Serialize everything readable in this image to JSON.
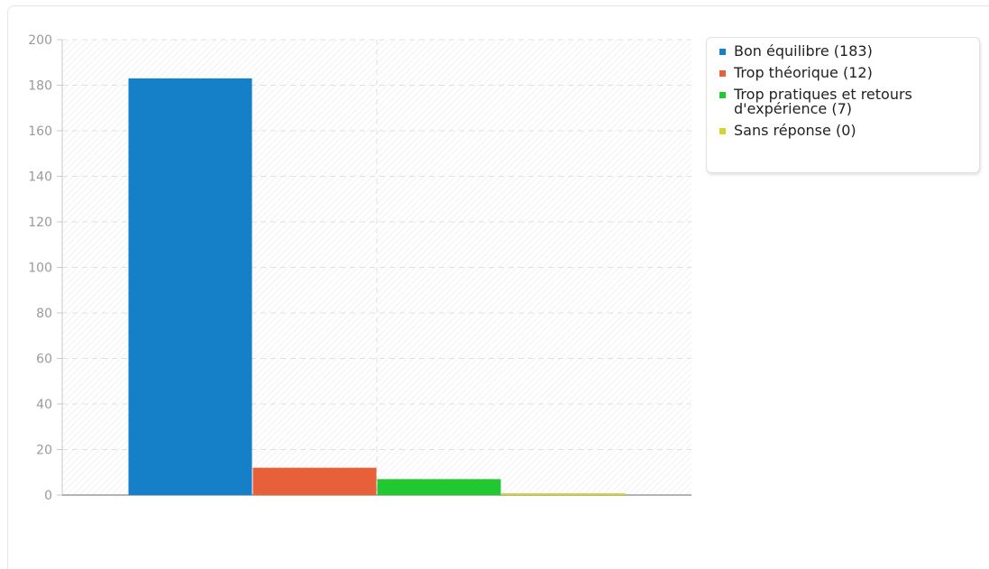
{
  "chart_data": {
    "type": "bar",
    "categories": [
      "Bon équilibre (183)",
      "Trop théorique (12)",
      "Trop pratiques et retours d'expérience (7)",
      "Sans réponse (0)"
    ],
    "values": [
      183,
      12,
      7,
      0
    ],
    "colors": [
      "#1580c8",
      "#e8603a",
      "#22c832",
      "#d4d430"
    ],
    "title": "",
    "xlabel": "",
    "ylabel": "",
    "ylim": [
      0,
      200
    ],
    "yticks": [
      0,
      20,
      40,
      60,
      80,
      100,
      120,
      140,
      160,
      180,
      200
    ],
    "grid": true,
    "legend_position": "top-right"
  },
  "legend": {
    "items": [
      {
        "label": "Bon équilibre (183)",
        "color": "#1580c8"
      },
      {
        "label": "Trop théorique (12)",
        "color": "#e8603a"
      },
      {
        "label": "Trop pratiques et retours d'expérience (7)",
        "color": "#22c832"
      },
      {
        "label": "Sans réponse (0)",
        "color": "#d4d430"
      }
    ]
  }
}
